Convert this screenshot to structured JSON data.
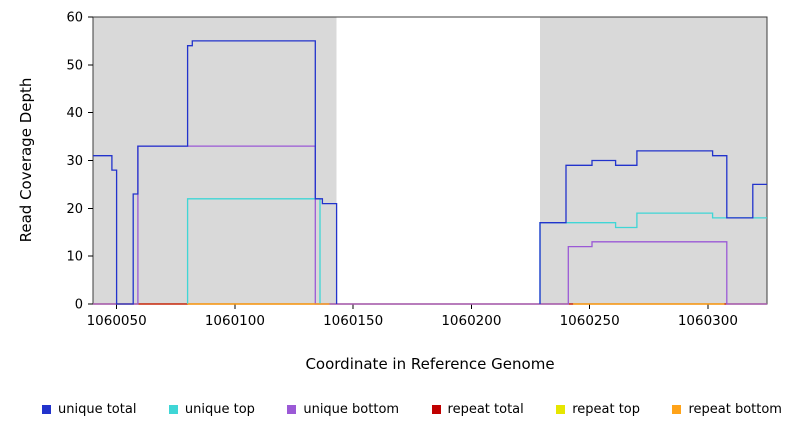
{
  "chart_data": {
    "type": "line",
    "subtype": "step-coverage",
    "title": "",
    "xlabel": "Coordinate in Reference Genome",
    "ylabel": "Read Coverage Depth",
    "xlim": [
      1060040,
      1060325
    ],
    "ylim": [
      0,
      60
    ],
    "x_ticks": [
      1060050,
      1060100,
      1060150,
      1060200,
      1060250,
      1060300
    ],
    "y_ticks": [
      0,
      10,
      20,
      30,
      40,
      50,
      60
    ],
    "grid": false,
    "legend_position": "bottom",
    "shaded_color": "#D9D9D9",
    "shaded_regions": [
      {
        "from": 1060040,
        "to": 1060143
      },
      {
        "from": 1060229,
        "to": 1060325
      }
    ],
    "series": [
      {
        "name": "repeat top",
        "color": "#E6E600",
        "segments": [
          [
            [
              1060040,
              0
            ],
            [
              1060325,
              0
            ]
          ]
        ]
      },
      {
        "name": "repeat total",
        "color": "#C00000",
        "segments": [
          [
            [
              1060040,
              0
            ],
            [
              1060325,
              0
            ]
          ]
        ]
      },
      {
        "name": "unique bottom",
        "color": "#9B59D6",
        "segments": [
          [
            [
              1060040,
              0
            ],
            [
              1060059,
              0
            ],
            [
              1060059,
              33
            ],
            [
              1060134,
              33
            ],
            [
              1060134,
              0
            ],
            [
              1060241,
              0
            ],
            [
              1060241,
              12
            ],
            [
              1060251,
              12
            ],
            [
              1060251,
              13
            ],
            [
              1060308,
              13
            ],
            [
              1060308,
              0
            ],
            [
              1060325,
              0
            ]
          ]
        ]
      },
      {
        "name": "unique top",
        "color": "#3FD6D6",
        "segments": [
          [
            [
              1060080,
              0
            ],
            [
              1060080,
              22
            ],
            [
              1060136,
              22
            ],
            [
              1060136,
              0
            ]
          ],
          [
            [
              1060229,
              0
            ],
            [
              1060229,
              17
            ],
            [
              1060261,
              17
            ],
            [
              1060261,
              16
            ],
            [
              1060270,
              16
            ],
            [
              1060270,
              19
            ],
            [
              1060302,
              19
            ],
            [
              1060302,
              18
            ],
            [
              1060325,
              18
            ]
          ]
        ]
      },
      {
        "name": "repeat bottom",
        "color": "#FFA319",
        "segments": [
          [
            [
              1060080,
              0
            ],
            [
              1060140,
              0
            ]
          ],
          [
            [
              1060243,
              0
            ],
            [
              1060307,
              0
            ]
          ]
        ]
      },
      {
        "name": "unique total",
        "color": "#2233CC",
        "segments": [
          [
            [
              1060040,
              31
            ],
            [
              1060048,
              31
            ],
            [
              1060048,
              28
            ],
            [
              1060050,
              28
            ],
            [
              1060050,
              0
            ],
            [
              1060057,
              0
            ],
            [
              1060057,
              23
            ],
            [
              1060059,
              23
            ],
            [
              1060059,
              33
            ],
            [
              1060080,
              33
            ],
            [
              1060080,
              54
            ],
            [
              1060082,
              54
            ],
            [
              1060082,
              55
            ],
            [
              1060134,
              55
            ],
            [
              1060134,
              22
            ],
            [
              1060137,
              22
            ],
            [
              1060137,
              21
            ],
            [
              1060143,
              21
            ],
            [
              1060143,
              0
            ]
          ],
          [
            [
              1060229,
              0
            ],
            [
              1060229,
              17
            ],
            [
              1060240,
              17
            ],
            [
              1060240,
              29
            ],
            [
              1060251,
              29
            ],
            [
              1060251,
              30
            ],
            [
              1060261,
              30
            ],
            [
              1060261,
              29
            ],
            [
              1060270,
              29
            ],
            [
              1060270,
              32
            ],
            [
              1060302,
              32
            ],
            [
              1060302,
              31
            ],
            [
              1060308,
              31
            ],
            [
              1060308,
              18
            ],
            [
              1060319,
              18
            ],
            [
              1060319,
              25
            ],
            [
              1060325,
              25
            ]
          ]
        ]
      }
    ]
  },
  "legend": {
    "items": [
      {
        "label": "unique total",
        "color": "#2233CC"
      },
      {
        "label": "unique top",
        "color": "#3FD6D6"
      },
      {
        "label": "unique bottom",
        "color": "#9B59D6"
      },
      {
        "label": "repeat total",
        "color": "#C00000"
      },
      {
        "label": "repeat top",
        "color": "#E6E600"
      },
      {
        "label": "repeat bottom",
        "color": "#FFA319"
      }
    ]
  }
}
